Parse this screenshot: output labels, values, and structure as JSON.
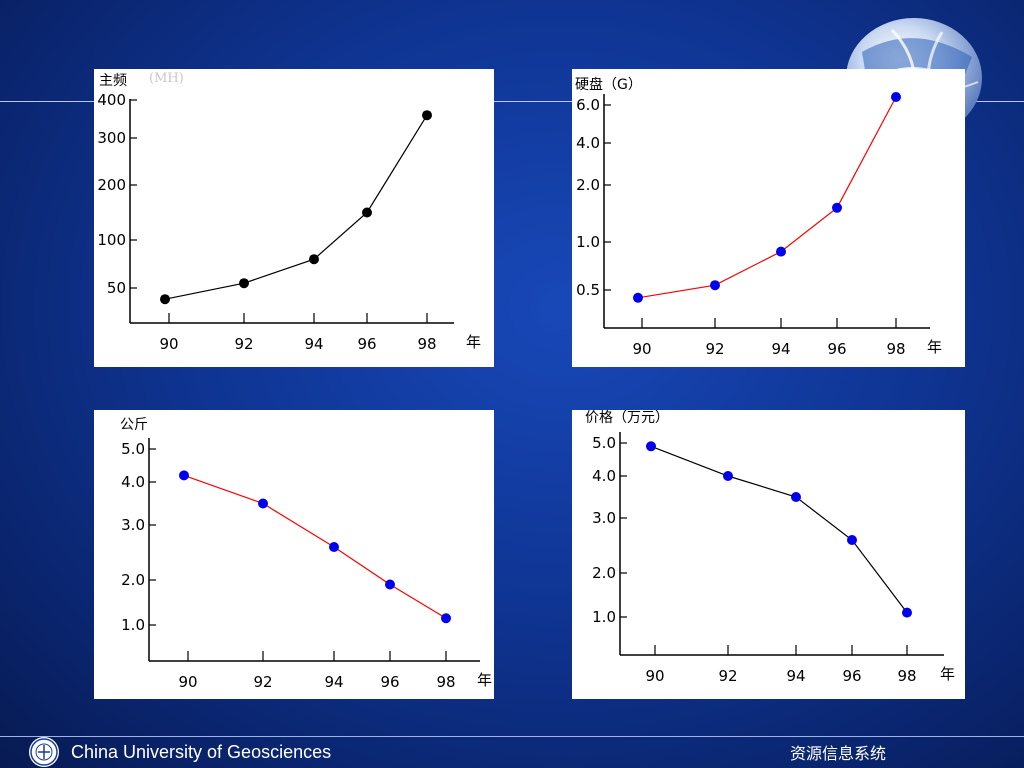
{
  "colors": {
    "background": "#0f3594",
    "panel": "#ffffff",
    "line_red": "#ff0000",
    "line_black": "#000000",
    "marker_blue": "#0000ee",
    "marker_black": "#000000"
  },
  "chart_data": [
    {
      "type": "line",
      "ylabel": "主频",
      "yunit": "(MH)",
      "xunit": "年",
      "x": [
        90,
        92,
        94,
        96,
        98
      ],
      "y": [
        40,
        55,
        80,
        150,
        360
      ],
      "yticks": [
        50,
        100,
        200,
        300,
        400
      ],
      "yticklabels": [
        "50",
        "100",
        "200",
        "300",
        "400"
      ],
      "xticks": [
        "90",
        "92",
        "94",
        "96",
        "98"
      ],
      "line_color": "#000000",
      "marker_color": "#000000",
      "grid": false
    },
    {
      "type": "line",
      "ylabel": "硬盘（G）",
      "xunit": "年",
      "x": [
        90,
        92,
        94,
        96,
        98
      ],
      "y": [
        0.4,
        0.55,
        0.9,
        1.6,
        6.5
      ],
      "yticks": [
        0.5,
        1.0,
        2.0,
        4.0,
        6.0
      ],
      "yticklabels": [
        "0.5",
        "1.0",
        "2.0",
        "4.0",
        "6.0"
      ],
      "xticks": [
        "90",
        "92",
        "94",
        "96",
        "98"
      ],
      "line_color": "#ff0000",
      "marker_color": "#0000ee",
      "grid": false
    },
    {
      "type": "line",
      "ylabel": "公斤",
      "xunit": "年",
      "x": [
        90,
        92,
        94,
        96,
        98
      ],
      "y": [
        4.2,
        3.5,
        2.6,
        1.9,
        1.15
      ],
      "yticks": [
        1.0,
        2.0,
        3.0,
        4.0,
        5.0
      ],
      "yticklabels": [
        "1.0",
        "2.0",
        "3.0",
        "4.0",
        "5.0"
      ],
      "xticks": [
        "90",
        "92",
        "94",
        "96",
        "98"
      ],
      "line_color": "#ff0000",
      "marker_color": "#0000ee",
      "grid": false
    },
    {
      "type": "line",
      "ylabel": "价格（万元）",
      "xunit": "年",
      "x": [
        90,
        92,
        94,
        96,
        98
      ],
      "y": [
        4.9,
        4.0,
        3.5,
        2.6,
        1.1
      ],
      "yticks": [
        1.0,
        2.0,
        3.0,
        4.0,
        5.0
      ],
      "yticklabels": [
        "1.0",
        "2.0",
        "3.0",
        "4.0",
        "5.0"
      ],
      "xticks": [
        "90",
        "92",
        "94",
        "96",
        "98"
      ],
      "line_color": "#000000",
      "marker_color": "#0000ee",
      "grid": false
    }
  ],
  "footer": {
    "institution": "China University of Geosciences",
    "course": "资源信息系统",
    "logo_icon": "university-seal-icon"
  },
  "decor": {
    "globe_icon": "globe-icon"
  }
}
